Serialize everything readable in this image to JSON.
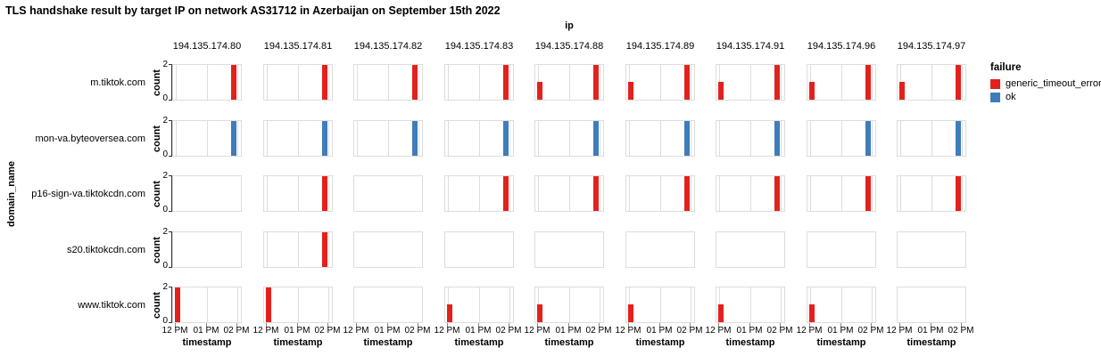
{
  "title": "TLS handshake result by target IP on network AS31712 in Azerbaijan on September 15th 2022",
  "chart_data": {
    "type": "bar",
    "title": "TLS handshake result by target IP on network AS31712 in Azerbaijan on September 15th 2022",
    "facet": {
      "column_field": "ip",
      "row_field": "domain_name",
      "columns": [
        "194.135.174.80",
        "194.135.174.81",
        "194.135.174.82",
        "194.135.174.83",
        "194.135.174.88",
        "194.135.174.89",
        "194.135.174.91",
        "194.135.174.96",
        "194.135.174.97"
      ],
      "rows": [
        "m.tiktok.com",
        "mon-va.byteoversea.com",
        "p16-sign-va.tiktokcdn.com",
        "s20.tiktokcdn.com",
        "www.tiktok.com"
      ]
    },
    "x": {
      "label": "timestamp",
      "ticks": [
        "12 PM",
        "01 PM",
        "02 PM"
      ]
    },
    "y": {
      "label": "count",
      "ticks": [
        "0",
        "2"
      ],
      "ylim": [
        0,
        2
      ]
    },
    "legend": {
      "title": "failure",
      "entries": [
        {
          "label": "generic_timeout_error",
          "color": "#e3211c"
        },
        {
          "label": "ok",
          "color": "#3e7db9"
        }
      ]
    },
    "grid": true,
    "cells": [
      [
        [
          {
            "t": "02 PM",
            "count": 2,
            "failure": "generic_timeout_error"
          }
        ],
        [
          {
            "t": "02 PM",
            "count": 2,
            "failure": "generic_timeout_error"
          }
        ],
        [
          {
            "t": "02 PM",
            "count": 2,
            "failure": "generic_timeout_error"
          }
        ],
        [
          {
            "t": "02 PM",
            "count": 2,
            "failure": "generic_timeout_error"
          }
        ],
        [
          {
            "t": "12 PM",
            "count": 1,
            "failure": "generic_timeout_error"
          },
          {
            "t": "02 PM",
            "count": 2,
            "failure": "generic_timeout_error"
          }
        ],
        [
          {
            "t": "12 PM",
            "count": 1,
            "failure": "generic_timeout_error"
          },
          {
            "t": "02 PM",
            "count": 2,
            "failure": "generic_timeout_error"
          }
        ],
        [
          {
            "t": "12 PM",
            "count": 1,
            "failure": "generic_timeout_error"
          },
          {
            "t": "02 PM",
            "count": 2,
            "failure": "generic_timeout_error"
          }
        ],
        [
          {
            "t": "12 PM",
            "count": 1,
            "failure": "generic_timeout_error"
          },
          {
            "t": "02 PM",
            "count": 2,
            "failure": "generic_timeout_error"
          }
        ],
        [
          {
            "t": "12 PM",
            "count": 1,
            "failure": "generic_timeout_error"
          },
          {
            "t": "02 PM",
            "count": 2,
            "failure": "generic_timeout_error"
          }
        ]
      ],
      [
        [
          {
            "t": "02 PM",
            "count": 2,
            "failure": "ok"
          }
        ],
        [
          {
            "t": "02 PM",
            "count": 2,
            "failure": "ok"
          }
        ],
        [
          {
            "t": "02 PM",
            "count": 2,
            "failure": "ok"
          }
        ],
        [
          {
            "t": "02 PM",
            "count": 2,
            "failure": "ok"
          }
        ],
        [
          {
            "t": "02 PM",
            "count": 2,
            "failure": "ok"
          }
        ],
        [
          {
            "t": "02 PM",
            "count": 2,
            "failure": "ok"
          }
        ],
        [
          {
            "t": "02 PM",
            "count": 2,
            "failure": "ok"
          }
        ],
        [
          {
            "t": "02 PM",
            "count": 2,
            "failure": "ok"
          }
        ],
        [
          {
            "t": "02 PM",
            "count": 2,
            "failure": "ok"
          }
        ]
      ],
      [
        [],
        [
          {
            "t": "02 PM",
            "count": 2,
            "failure": "generic_timeout_error"
          }
        ],
        [],
        [
          {
            "t": "02 PM",
            "count": 2,
            "failure": "generic_timeout_error"
          }
        ],
        [
          {
            "t": "02 PM",
            "count": 2,
            "failure": "generic_timeout_error"
          }
        ],
        [
          {
            "t": "02 PM",
            "count": 2,
            "failure": "generic_timeout_error"
          }
        ],
        [
          {
            "t": "02 PM",
            "count": 2,
            "failure": "generic_timeout_error"
          }
        ],
        [
          {
            "t": "02 PM",
            "count": 2,
            "failure": "generic_timeout_error"
          }
        ],
        [
          {
            "t": "02 PM",
            "count": 2,
            "failure": "generic_timeout_error"
          }
        ]
      ],
      [
        [],
        [
          {
            "t": "02 PM",
            "count": 2,
            "failure": "generic_timeout_error"
          }
        ],
        [],
        [],
        [],
        [],
        [],
        [],
        []
      ],
      [
        [
          {
            "t": "12 PM",
            "count": 2,
            "failure": "generic_timeout_error"
          }
        ],
        [
          {
            "t": "12 PM",
            "count": 2,
            "failure": "generic_timeout_error"
          }
        ],
        [],
        [
          {
            "t": "12 PM",
            "count": 1,
            "failure": "generic_timeout_error"
          }
        ],
        [
          {
            "t": "12 PM",
            "count": 1,
            "failure": "generic_timeout_error"
          }
        ],
        [
          {
            "t": "12 PM",
            "count": 1,
            "failure": "generic_timeout_error"
          }
        ],
        [
          {
            "t": "12 PM",
            "count": 1,
            "failure": "generic_timeout_error"
          }
        ],
        [
          {
            "t": "12 PM",
            "count": 1,
            "failure": "generic_timeout_error"
          }
        ],
        []
      ]
    ]
  }
}
